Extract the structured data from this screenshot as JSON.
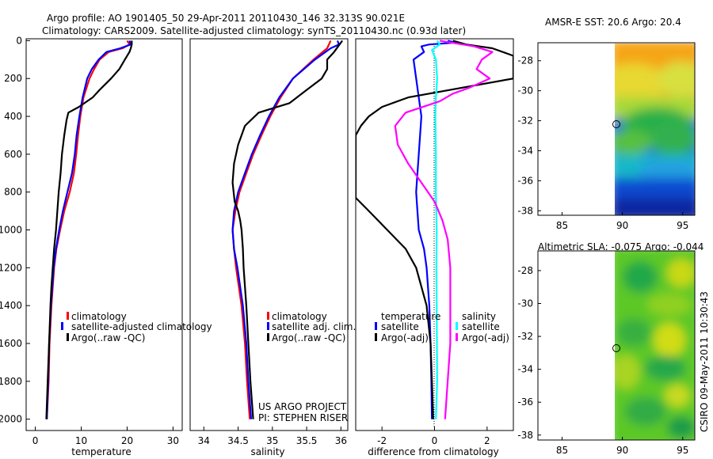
{
  "title_line1": "Argo profile: AO 1901405_50 29-Apr-2011 20110430_146 32.313S 90.021E",
  "title_line2": "Climatology: CARS2009. Satellite-adjusted climatology: synTS_20110430.nc (0.93d later)",
  "side_label": "CSIRO 09-May-2011 10:30:43",
  "colors": {
    "climatology": "#ff0000",
    "satellite": "#0000ff",
    "argo": "#000000",
    "sat_sal": "#00ffff",
    "argo_sal": "#ff00ff"
  },
  "chart_data": [
    {
      "id": "temperature",
      "type": "line",
      "xlabel": "temperature",
      "ylabel": "",
      "xlim": [
        -2,
        32
      ],
      "ylim": [
        2060,
        -10
      ],
      "xticks": [
        0,
        10,
        20,
        30
      ],
      "yticks": [
        0,
        200,
        400,
        600,
        800,
        1000,
        1200,
        1400,
        1600,
        1800,
        2000
      ],
      "legend": [
        "climatology",
        "satellite-adjusted climatology",
        "Argo(..raw -QC)"
      ],
      "series": [
        {
          "name": "climatology",
          "color": "#ff0000",
          "depth": [
            0,
            20,
            40,
            60,
            100,
            150,
            200,
            300,
            400,
            500,
            600,
            700,
            800,
            900,
            1000,
            1100,
            1200,
            1300,
            1400,
            1600,
            1800,
            2000
          ],
          "values": [
            20,
            20.5,
            19,
            16,
            14,
            12.8,
            11.8,
            10.5,
            9.8,
            9.3,
            8.9,
            8.4,
            7.5,
            6.3,
            5.4,
            4.6,
            4.1,
            3.8,
            3.5,
            3.1,
            2.9,
            2.5
          ]
        },
        {
          "name": "satellite",
          "color": "#0000ff",
          "depth": [
            0,
            20,
            40,
            60,
            100,
            150,
            200,
            300,
            400,
            500,
            600,
            700,
            800,
            900,
            1000,
            1100,
            1200,
            1300,
            1400,
            1600,
            1800,
            2000
          ],
          "values": [
            20.5,
            20.8,
            18.5,
            15.5,
            13.8,
            12.3,
            11.3,
            10.3,
            9.6,
            9,
            8.6,
            8,
            7,
            6,
            5.2,
            4.5,
            4,
            3.7,
            3.4,
            3,
            2.8,
            2.5
          ]
        },
        {
          "name": "Argo",
          "color": "#000000",
          "depth": [
            0,
            20,
            40,
            60,
            100,
            150,
            200,
            260,
            300,
            350,
            380,
            420,
            500,
            600,
            700,
            800,
            900,
            1000,
            1100,
            1200,
            1300,
            1400,
            1600,
            1800,
            2000
          ],
          "values": [
            21,
            21,
            20.8,
            20.5,
            19.5,
            18.3,
            16.5,
            14,
            12.5,
            9.5,
            7.2,
            6.8,
            6.3,
            5.8,
            5.5,
            5.1,
            4.8,
            4.5,
            4.1,
            3.8,
            3.5,
            3.3,
            3,
            2.7,
            2.4
          ]
        }
      ]
    },
    {
      "id": "salinity",
      "type": "line",
      "xlabel": "salinity",
      "ylabel": "",
      "xlim": [
        33.8,
        36.1
      ],
      "ylim": [
        2060,
        -10
      ],
      "xticks": [
        34,
        34.5,
        35,
        35.5,
        36
      ],
      "legend": [
        "climatology",
        "satellite adj. clim.",
        "Argo(..raw -QC)"
      ],
      "annotations": [
        "US ARGO PROJECT",
        "PI: STEPHEN RISER"
      ],
      "series": [
        {
          "name": "climatology",
          "color": "#ff0000",
          "depth": [
            0,
            40,
            100,
            200,
            300,
            400,
            500,
            600,
            700,
            800,
            900,
            1000,
            1100,
            1200,
            1400,
            1600,
            1800,
            2000
          ],
          "values": [
            35.85,
            35.8,
            35.6,
            35.3,
            35.12,
            34.97,
            34.84,
            34.72,
            34.62,
            34.52,
            34.46,
            34.42,
            34.44,
            34.47,
            34.55,
            34.6,
            34.63,
            34.67
          ]
        },
        {
          "name": "satellite",
          "color": "#0000ff",
          "depth": [
            0,
            20,
            40,
            100,
            200,
            300,
            400,
            500,
            600,
            700,
            800,
            900,
            1000,
            1100,
            1200,
            1400,
            1600,
            1800,
            2000
          ],
          "values": [
            35.95,
            35.97,
            35.85,
            35.62,
            35.3,
            35.1,
            34.95,
            34.82,
            34.7,
            34.6,
            34.5,
            34.44,
            34.42,
            34.44,
            34.49,
            34.57,
            34.62,
            34.65,
            34.69
          ]
        },
        {
          "name": "Argo",
          "color": "#000000",
          "depth": [
            0,
            20,
            60,
            100,
            150,
            200,
            260,
            330,
            380,
            450,
            550,
            650,
            750,
            850,
            900,
            950,
            1000,
            1100,
            1200,
            1400,
            1600,
            1800,
            2000
          ],
          "values": [
            36.02,
            35.98,
            35.9,
            35.8,
            35.8,
            35.72,
            35.5,
            35.25,
            34.8,
            34.6,
            34.5,
            34.44,
            34.42,
            34.45,
            34.5,
            34.53,
            34.55,
            34.57,
            34.58,
            34.62,
            34.65,
            34.68,
            34.72
          ]
        }
      ]
    },
    {
      "id": "difference",
      "type": "line",
      "xlabel": "difference from climatology",
      "ylabel": "",
      "xlim": [
        -3,
        3
      ],
      "ylim": [
        2060,
        -10
      ],
      "xticks": [
        -2,
        0,
        2
      ],
      "legend": [
        "temperature",
        "satellite",
        "Argo(-adj)",
        "salinity",
        "satellite",
        "Argo(-adj)"
      ],
      "series": [
        {
          "name": "temp satellite",
          "color": "#0000ff",
          "depth": [
            0,
            10,
            20,
            30,
            60,
            100,
            200,
            300,
            400,
            600,
            800,
            900,
            1000,
            1100,
            1200,
            1400,
            1600,
            1800,
            2000
          ],
          "values": [
            0.5,
            0.8,
            -0.2,
            -0.5,
            -0.4,
            -0.8,
            -0.7,
            -0.6,
            -0.5,
            -0.6,
            -0.7,
            -0.65,
            -0.6,
            -0.4,
            -0.3,
            -0.2,
            -0.15,
            -0.12,
            -0.1
          ]
        },
        {
          "name": "temp Argo",
          "color": "#000000",
          "depth": [
            0,
            20,
            40,
            80,
            150,
            200,
            300,
            350,
            400,
            450,
            500,
            830,
            900,
            1000,
            1100,
            1200,
            1400,
            1600,
            1800,
            2000
          ],
          "values": [
            0.7,
            1.2,
            2.2,
            3,
            3,
            3,
            -1,
            -2,
            -2.5,
            -2.8,
            -3,
            -3,
            -2.5,
            -1.8,
            -1.1,
            -0.7,
            -0.3,
            -0.15,
            -0.1,
            -0.05
          ]
        },
        {
          "name": "sal satellite",
          "color": "#00ffff",
          "depth": [
            0,
            20,
            50,
            100,
            200,
            300,
            400,
            600,
            800,
            1000,
            1200,
            1400,
            1600,
            1800,
            2000
          ],
          "values": [
            0.1,
            0.2,
            -0.1,
            0.05,
            0.1,
            0.05,
            0.03,
            0.05,
            0.05,
            0.08,
            0.07,
            0.08,
            0.09,
            0.1,
            0.05
          ]
        },
        {
          "name": "sal Argo",
          "color": "#ff00ff",
          "depth": [
            0,
            30,
            60,
            100,
            150,
            200,
            250,
            280,
            320,
            380,
            450,
            550,
            650,
            750,
            850,
            950,
            1050,
            1200,
            1400,
            1600,
            1800,
            2000
          ],
          "values": [
            0.2,
            1.5,
            2.2,
            1.8,
            1.6,
            2.1,
            1.3,
            0.7,
            0.2,
            -1.1,
            -1.5,
            -1.4,
            -1,
            -0.5,
            0,
            0.3,
            0.5,
            0.6,
            0.6,
            0.6,
            0.5,
            0.4
          ]
        }
      ]
    },
    {
      "id": "sst_map",
      "type": "heatmap",
      "title": "AMSR-E SST: 20.6 Argo: 20.4",
      "xlim": [
        83,
        96
      ],
      "ylim": [
        -38.3,
        -26.8
      ],
      "xticks": [
        85,
        90,
        95
      ],
      "yticks": [
        -28,
        -30,
        -32,
        -34,
        -36,
        -38
      ],
      "data_x_range": [
        90,
        96
      ],
      "marker": {
        "lon": 90.021,
        "lat": -32.313
      }
    },
    {
      "id": "sla_map",
      "type": "heatmap",
      "title": "Altimetric SLA: -0.075 Argo: -0.044",
      "xlim": [
        83,
        96
      ],
      "ylim": [
        -38.3,
        -26.8
      ],
      "xticks": [
        85,
        90,
        95
      ],
      "yticks": [
        -28,
        -30,
        -32,
        -34,
        -36,
        -38
      ],
      "data_x_range": [
        90,
        96
      ],
      "marker": {
        "lon": 90.021,
        "lat": -32.313
      }
    }
  ]
}
